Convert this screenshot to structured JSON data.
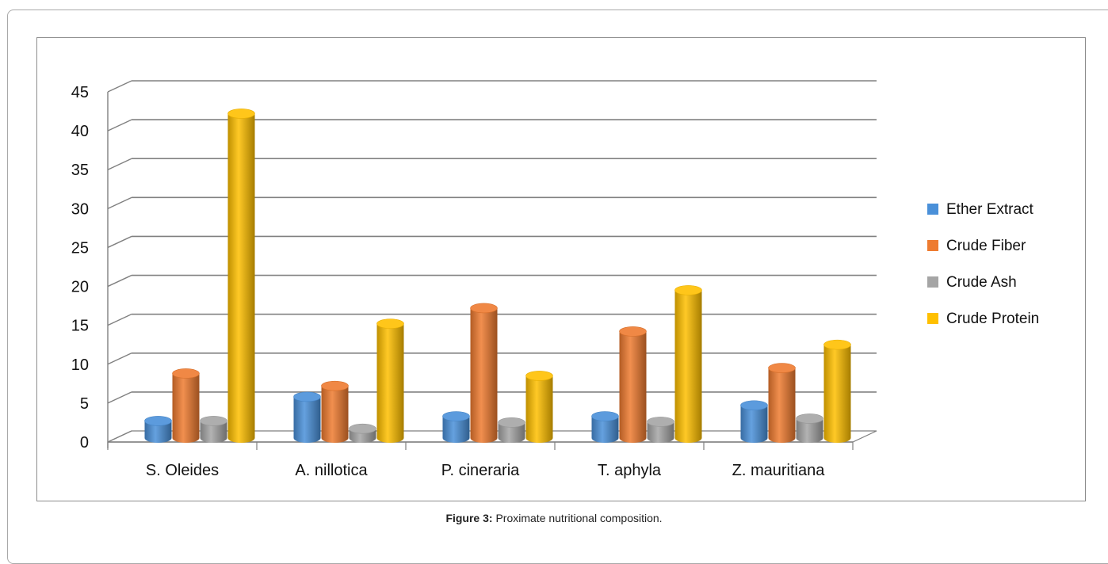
{
  "chart_data": {
    "type": "bar",
    "categories": [
      "S. Oleides",
      "A. nillotica",
      "P. cineraria",
      "T. aphyla",
      "Z. mauritiana"
    ],
    "series": [
      {
        "name": "Ether Extract",
        "color": "#4a90d9",
        "values": [
          2.2,
          5.3,
          2.8,
          2.8,
          4.2
        ]
      },
      {
        "name": "Crude Fiber",
        "color": "#ee7b30",
        "values": [
          8.3,
          6.7,
          16.7,
          13.7,
          9.0
        ]
      },
      {
        "name": "Crude Ash",
        "color": "#a5a5a5",
        "values": [
          2.2,
          1.2,
          2.0,
          2.1,
          2.5
        ]
      },
      {
        "name": "Crude Protein",
        "color": "#ffc000",
        "values": [
          41.7,
          14.7,
          8.0,
          19.0,
          12.0
        ]
      }
    ],
    "yticks": [
      "0",
      "5",
      "10",
      "15",
      "20",
      "25",
      "30",
      "35",
      "40",
      "45"
    ],
    "ylim": [
      0,
      45
    ],
    "grid": true,
    "legend_position": "right",
    "title": "",
    "xlabel": "",
    "ylabel": ""
  },
  "caption": {
    "label": "Figure 3:",
    "text": "Proximate nutritional composition."
  }
}
